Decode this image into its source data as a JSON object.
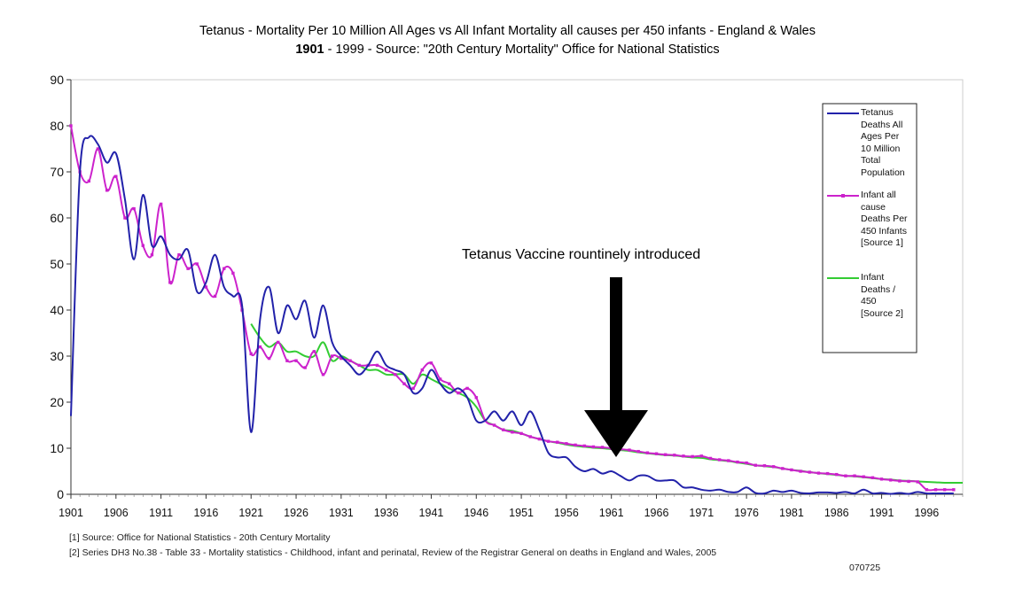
{
  "titles": {
    "line1": "Tetanus - Mortality Per 10 Million All Ages vs All Infant Mortality all causes per 450 infants - England & Wales",
    "line2_bold": "1901",
    "line2_rest": " - 1999 - Source: \"20th Century Mortality\" Office for National Statistics"
  },
  "annotation": "Tetanus Vaccine rountinely introduced",
  "footnotes": {
    "note1": "[1] Source: Office for National Statistics - 20th Century Mortality",
    "note2": "[2] Series DH3 No.38 - Table 33 - Mortality statistics - Childhood, infant and perinatal, Review of the Registrar General on deaths in England and Wales, 2005",
    "code": "070725"
  },
  "legend": {
    "entries": [
      {
        "label": "Tetanus Deaths All Ages Per 10 Million Total Population",
        "lines": [
          "Tetanus",
          "Deaths All",
          "Ages Per",
          "10 Million",
          "Total",
          "Population"
        ]
      },
      {
        "label": "Infant all cause Deaths Per 450 Infants [Source 1]",
        "lines": [
          "Infant all",
          "cause",
          "Deaths Per",
          "450 Infants",
          "[Source 1]"
        ]
      },
      {
        "label": "Infant Deaths / 450 [Source 2]",
        "lines": [
          "Infant",
          "Deaths /",
          "450",
          "[Source 2]"
        ]
      }
    ]
  },
  "chart_data": {
    "type": "line",
    "title": "Tetanus - Mortality Per 10 Million All Ages vs All Infant Mortality all causes per 450 infants - England & Wales",
    "subtitle": "1901 - 1999 - Source: \"20th Century Mortality\" Office for National Statistics",
    "xlim": [
      1901,
      2000
    ],
    "ylim": [
      0,
      90
    ],
    "yticks": [
      0,
      10,
      20,
      30,
      40,
      50,
      60,
      70,
      80,
      90
    ],
    "xticks": [
      1901,
      1906,
      1911,
      1916,
      1921,
      1926,
      1931,
      1936,
      1941,
      1946,
      1951,
      1956,
      1961,
      1966,
      1971,
      1976,
      1981,
      1986,
      1991,
      1996
    ],
    "grid": false,
    "legend_position": "right",
    "arrow_year": 1961,
    "series": [
      {
        "name": "Tetanus Deaths All Ages Per 10 Million Total Population",
        "color": "#2222aa",
        "markers": false,
        "x": [
          1901,
          1902,
          1903,
          1904,
          1905,
          1906,
          1907,
          1908,
          1909,
          1910,
          1911,
          1912,
          1913,
          1914,
          1915,
          1916,
          1917,
          1918,
          1919,
          1920,
          1921,
          1922,
          1923,
          1924,
          1925,
          1926,
          1927,
          1928,
          1929,
          1930,
          1931,
          1932,
          1933,
          1934,
          1935,
          1936,
          1937,
          1938,
          1939,
          1940,
          1941,
          1942,
          1943,
          1944,
          1945,
          1946,
          1947,
          1948,
          1949,
          1950,
          1951,
          1952,
          1953,
          1954,
          1955,
          1956,
          1957,
          1958,
          1959,
          1960,
          1961,
          1962,
          1963,
          1964,
          1965,
          1966,
          1967,
          1968,
          1969,
          1970,
          1971,
          1972,
          1973,
          1974,
          1975,
          1976,
          1977,
          1978,
          1979,
          1980,
          1981,
          1982,
          1983,
          1984,
          1985,
          1986,
          1987,
          1988,
          1989,
          1990,
          1991,
          1992,
          1993,
          1994,
          1995,
          1996,
          1997,
          1998,
          1999
        ],
        "y": [
          17,
          70,
          77.5,
          76,
          72,
          74,
          64,
          51,
          65,
          54,
          56,
          52,
          51,
          53,
          44,
          46,
          52,
          45,
          43,
          41,
          13.5,
          38,
          45,
          35,
          41,
          38,
          42,
          34,
          41,
          33,
          30,
          28,
          26,
          28,
          31,
          28,
          27,
          26,
          22,
          23,
          27,
          24,
          22,
          23,
          21,
          16,
          16,
          18,
          16,
          18,
          15,
          18,
          14,
          9,
          8,
          8,
          6,
          5,
          5.5,
          4.5,
          5,
          4,
          3,
          4,
          4,
          3,
          3,
          3,
          1.5,
          1.5,
          1,
          0.8,
          1,
          0.5,
          0.5,
          1.5,
          0.3,
          0.2,
          0.8,
          0.5,
          0.8,
          0.3,
          0.2,
          0.4,
          0.4,
          0.3,
          0.5,
          0.2,
          1,
          0.2,
          0.3,
          0.1,
          0.3,
          0.1,
          0.5,
          0.2,
          0.2,
          0.2,
          0.2
        ]
      },
      {
        "name": "Infant all cause Deaths Per 450 Infants [Source 1]",
        "color": "#cc22cc",
        "markers": true,
        "x": [
          1901,
          1902,
          1903,
          1904,
          1905,
          1906,
          1907,
          1908,
          1909,
          1910,
          1911,
          1912,
          1913,
          1914,
          1915,
          1916,
          1917,
          1918,
          1919,
          1920,
          1921,
          1922,
          1923,
          1924,
          1925,
          1926,
          1927,
          1928,
          1929,
          1930,
          1931,
          1932,
          1933,
          1934,
          1935,
          1936,
          1937,
          1938,
          1939,
          1940,
          1941,
          1942,
          1943,
          1944,
          1945,
          1946,
          1947,
          1948,
          1949,
          1950,
          1951,
          1952,
          1953,
          1954,
          1955,
          1956,
          1957,
          1958,
          1959,
          1960,
          1961,
          1962,
          1963,
          1964,
          1965,
          1966,
          1967,
          1968,
          1969,
          1970,
          1971,
          1972,
          1973,
          1974,
          1975,
          1976,
          1977,
          1978,
          1979,
          1980,
          1981,
          1982,
          1983,
          1984,
          1985,
          1986,
          1987,
          1988,
          1989,
          1990,
          1991,
          1992,
          1993,
          1994,
          1995,
          1996,
          1997,
          1998,
          1999
        ],
        "y": [
          80,
          70,
          68,
          75,
          66,
          69,
          60,
          62,
          54,
          52,
          63,
          46,
          52,
          49,
          50,
          45,
          43,
          49,
          48,
          40,
          30.5,
          32,
          29.5,
          33,
          29,
          29,
          27.5,
          31,
          26,
          30,
          29.5,
          29,
          28,
          28,
          28,
          27,
          26,
          24,
          23,
          27,
          28.5,
          25,
          24,
          22,
          23,
          21,
          16,
          15,
          14,
          13.5,
          13.2,
          12.5,
          12,
          11.5,
          11.3,
          11,
          10.7,
          10.5,
          10.3,
          10.2,
          10,
          9.8,
          9.6,
          9.3,
          9,
          8.8,
          8.6,
          8.5,
          8.3,
          8.2,
          8.3,
          7.8,
          7.5,
          7.3,
          7,
          6.8,
          6.3,
          6.2,
          6,
          5.6,
          5.3,
          5,
          4.8,
          4.6,
          4.5,
          4.3,
          4,
          4,
          3.8,
          3.6,
          3.3,
          3.1,
          2.9,
          2.8,
          2.7,
          1,
          1,
          1,
          1
        ]
      },
      {
        "name": "Infant Deaths / 450 [Source 2]",
        "color": "#33cc33",
        "markers": false,
        "x": [
          1921,
          1922,
          1923,
          1924,
          1925,
          1926,
          1927,
          1928,
          1929,
          1930,
          1931,
          1932,
          1933,
          1934,
          1935,
          1936,
          1937,
          1938,
          1939,
          1940,
          1941,
          1942,
          1943,
          1944,
          1945,
          1946,
          1947,
          1948,
          1949,
          1950,
          1951,
          1952,
          1953,
          1954,
          1955,
          1956,
          1957,
          1958,
          1959,
          1960,
          1961,
          1962,
          1963,
          1964,
          1965,
          1966,
          1967,
          1968,
          1969,
          1970,
          1971,
          1972,
          1973,
          1974,
          1975,
          1976,
          1977,
          1978,
          1979,
          1980,
          1981,
          1982,
          1983,
          1984,
          1985,
          1986,
          1987,
          1988,
          1989,
          1990,
          1991,
          1992,
          1993,
          1994,
          1995,
          1996,
          1997,
          1998,
          1999,
          2000
        ],
        "y": [
          37,
          34,
          32,
          33,
          31,
          31,
          30,
          30,
          33,
          29,
          30,
          29,
          28,
          27,
          27,
          26,
          26,
          26,
          24,
          26,
          25,
          24,
          23,
          22,
          21,
          19,
          16,
          15,
          14,
          13.8,
          13.2,
          12.5,
          12,
          11.5,
          11.2,
          10.8,
          10.5,
          10.3,
          10.1,
          10,
          9.8,
          9.6,
          9.4,
          9.1,
          8.9,
          8.7,
          8.5,
          8.4,
          8.2,
          8,
          7.9,
          7.6,
          7.4,
          7.2,
          6.9,
          6.6,
          6.3,
          6.1,
          5.9,
          5.6,
          5.3,
          5.1,
          4.8,
          4.6,
          4.4,
          4.2,
          4,
          3.9,
          3.7,
          3.5,
          3.3,
          3.2,
          3,
          2.9,
          2.8,
          2.7,
          2.6,
          2.5,
          2.5,
          2.5
        ]
      }
    ]
  }
}
